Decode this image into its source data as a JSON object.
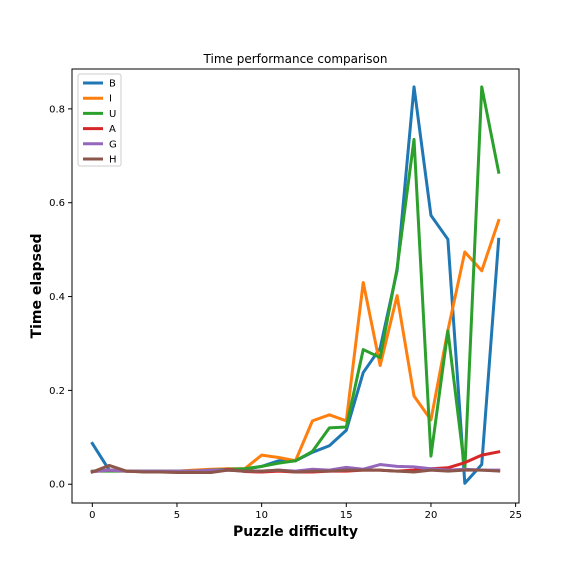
{
  "chart_data": {
    "type": "line",
    "title": "Time performance comparison",
    "xlabel": "Puzzle difficulty",
    "ylabel": "Time elapsed",
    "xlim": [
      -1.2,
      25.2
    ],
    "ylim": [
      -0.04,
      0.885
    ],
    "xticks": [
      0,
      5,
      10,
      15,
      20,
      25
    ],
    "yticks": [
      0.0,
      0.2,
      0.4,
      0.6,
      0.8
    ],
    "ytick_labels": [
      "0.0",
      "0.2",
      "0.4",
      "0.6",
      "0.8"
    ],
    "grid": false,
    "legend_position": "top-left",
    "x": [
      0,
      1,
      2,
      3,
      4,
      5,
      6,
      7,
      8,
      9,
      10,
      11,
      12,
      13,
      14,
      15,
      16,
      17,
      18,
      19,
      20,
      21,
      22,
      23,
      24
    ],
    "series": [
      {
        "name": "B",
        "color": "#1f77b4",
        "values": [
          0.087,
          0.03,
          0.028,
          0.028,
          0.028,
          0.027,
          0.028,
          0.028,
          0.03,
          0.032,
          0.038,
          0.05,
          0.05,
          0.068,
          0.082,
          0.115,
          0.238,
          0.29,
          0.455,
          0.847,
          0.573,
          0.522,
          0.002,
          0.042,
          0.522
        ]
      },
      {
        "name": "I",
        "color": "#ff7f0e",
        "values": [
          0.027,
          0.03,
          0.028,
          0.028,
          0.028,
          0.028,
          0.03,
          0.032,
          0.033,
          0.033,
          0.062,
          0.057,
          0.05,
          0.135,
          0.148,
          0.135,
          0.43,
          0.253,
          0.402,
          0.188,
          0.137,
          0.328,
          0.495,
          0.455,
          0.562
        ]
      },
      {
        "name": "U",
        "color": "#2ca02c",
        "values": [
          0.028,
          0.028,
          0.028,
          0.028,
          0.028,
          0.028,
          0.028,
          0.03,
          0.032,
          0.033,
          0.038,
          0.045,
          0.05,
          0.07,
          0.12,
          0.122,
          0.287,
          0.27,
          0.46,
          0.735,
          0.06,
          0.327,
          0.03,
          0.847,
          0.665
        ]
      },
      {
        "name": "A",
        "color": "#d62728",
        "values": [
          0.027,
          0.03,
          0.028,
          0.027,
          0.027,
          0.026,
          0.026,
          0.027,
          0.032,
          0.027,
          0.026,
          0.028,
          0.026,
          0.026,
          0.028,
          0.028,
          0.03,
          0.03,
          0.028,
          0.03,
          0.033,
          0.035,
          0.046,
          0.062,
          0.069
        ]
      },
      {
        "name": "G",
        "color": "#9467bd",
        "values": [
          0.027,
          0.03,
          0.028,
          0.028,
          0.028,
          0.028,
          0.028,
          0.03,
          0.03,
          0.028,
          0.028,
          0.03,
          0.028,
          0.032,
          0.03,
          0.036,
          0.032,
          0.042,
          0.038,
          0.037,
          0.033,
          0.03,
          0.032,
          0.03,
          0.03
        ]
      },
      {
        "name": "H",
        "color": "#8c564b",
        "values": [
          0.026,
          0.04,
          0.028,
          0.026,
          0.026,
          0.025,
          0.025,
          0.025,
          0.03,
          0.028,
          0.028,
          0.03,
          0.026,
          0.028,
          0.028,
          0.03,
          0.03,
          0.03,
          0.028,
          0.026,
          0.03,
          0.028,
          0.03,
          0.03,
          0.028
        ]
      }
    ]
  }
}
